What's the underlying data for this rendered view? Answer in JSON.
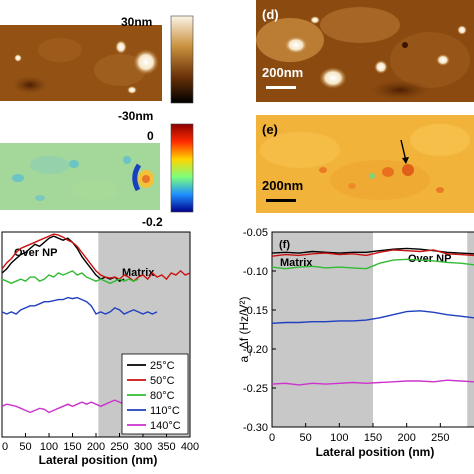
{
  "figure": {
    "panel_labels": {
      "d": "(d)",
      "e": "(e)",
      "f": "(f)"
    },
    "topo_colorbar": {
      "max": "30nm",
      "min": "-30nm"
    },
    "phase_colorbar": {
      "max": "0",
      "min": "-0.2"
    },
    "scale_bar": "200nm",
    "left_annotations": {
      "over_np": "Over NP",
      "matrix": "Matrix"
    },
    "right_annotations": {
      "matrix": "Matrix",
      "over_np": "Over NP"
    }
  },
  "chart_data": [
    {
      "type": "line",
      "id": "left-profile",
      "xlabel": "Lateral position (nm)",
      "ylabel": "",
      "xlim": [
        0,
        400
      ],
      "ylim": [
        0,
        1
      ],
      "xticks": [
        "0",
        "50",
        "100",
        "150",
        "200",
        "250",
        "300",
        "350",
        "400"
      ],
      "matrix_region": [
        205,
        400
      ],
      "series": [
        {
          "name": "25°C",
          "color": "#000000",
          "x": [
            0,
            10,
            20,
            30,
            40,
            50,
            60,
            70,
            80,
            90,
            100,
            110,
            120,
            130,
            140,
            150,
            160,
            170,
            180,
            190,
            200,
            210,
            220,
            230,
            240,
            250,
            260
          ],
          "y": [
            0.8,
            0.82,
            0.85,
            0.87,
            0.89,
            0.9,
            0.92,
            0.94,
            0.93,
            0.95,
            0.97,
            0.98,
            0.97,
            0.96,
            0.97,
            0.95,
            0.92,
            0.88,
            0.85,
            0.82,
            0.79,
            0.77,
            0.78,
            0.77,
            0.78,
            0.76,
            0.77
          ]
        },
        {
          "name": "50°C",
          "color": "#cc1111",
          "x": [
            0,
            10,
            20,
            30,
            40,
            50,
            60,
            70,
            80,
            90,
            100,
            110,
            120,
            130,
            140,
            150,
            160,
            170,
            180,
            190,
            200,
            210,
            220,
            230,
            240,
            250,
            260,
            270,
            280,
            290,
            300,
            310,
            320,
            330,
            340,
            350,
            360,
            370,
            380,
            390,
            400
          ],
          "y": [
            0.82,
            0.85,
            0.87,
            0.9,
            0.92,
            0.93,
            0.94,
            0.95,
            0.96,
            0.97,
            0.98,
            0.99,
            0.985,
            0.975,
            0.96,
            0.95,
            0.93,
            0.9,
            0.87,
            0.84,
            0.81,
            0.79,
            0.78,
            0.775,
            0.78,
            0.77,
            0.79,
            0.78,
            0.76,
            0.78,
            0.79,
            0.77,
            0.8,
            0.78,
            0.79,
            0.77,
            0.8,
            0.79,
            0.81,
            0.79,
            0.8
          ]
        },
        {
          "name": "80°C",
          "color": "#33bb33",
          "x": [
            0,
            10,
            20,
            30,
            40,
            50,
            60,
            70,
            80,
            90,
            100,
            110,
            120,
            130,
            140,
            150,
            160,
            170,
            180,
            190,
            200,
            210,
            220,
            230,
            240,
            250,
            260,
            270,
            280,
            290
          ],
          "y": [
            0.77,
            0.76,
            0.75,
            0.76,
            0.77,
            0.76,
            0.78,
            0.78,
            0.76,
            0.77,
            0.79,
            0.78,
            0.8,
            0.79,
            0.8,
            0.81,
            0.79,
            0.8,
            0.78,
            0.77,
            0.76,
            0.77,
            0.76,
            0.75,
            0.76,
            0.77,
            0.76,
            0.77,
            0.76,
            0.77
          ]
        },
        {
          "name": "110°C",
          "color": "#1f3fbf",
          "x": [
            0,
            10,
            20,
            30,
            40,
            50,
            60,
            70,
            80,
            90,
            100,
            110,
            120,
            130,
            140,
            150,
            160,
            170,
            180,
            190,
            200,
            210,
            220,
            230,
            240,
            250,
            260,
            270,
            280,
            290,
            300,
            310,
            320,
            330
          ],
          "y": [
            0.61,
            0.6,
            0.61,
            0.6,
            0.62,
            0.63,
            0.64,
            0.64,
            0.65,
            0.66,
            0.66,
            0.665,
            0.67,
            0.67,
            0.68,
            0.675,
            0.68,
            0.67,
            0.66,
            0.64,
            0.6,
            0.61,
            0.6,
            0.61,
            0.63,
            0.62,
            0.6,
            0.61,
            0.62,
            0.61,
            0.6,
            0.61,
            0.6,
            0.61
          ]
        },
        {
          "name": "140°C",
          "color": "#cc33cc",
          "x": [
            0,
            10,
            20,
            30,
            40,
            50,
            60,
            70,
            80,
            90,
            100,
            110,
            120,
            130,
            140,
            150,
            160,
            170,
            180,
            190,
            200,
            210,
            220,
            230,
            240,
            250,
            260,
            270,
            280,
            290
          ],
          "y": [
            0.15,
            0.16,
            0.155,
            0.15,
            0.14,
            0.13,
            0.12,
            0.13,
            0.14,
            0.135,
            0.12,
            0.13,
            0.14,
            0.15,
            0.16,
            0.15,
            0.16,
            0.17,
            0.16,
            0.17,
            0.16,
            0.15,
            0.16,
            0.17,
            0.18,
            0.17,
            0.16,
            0.17,
            0.18,
            0.19
          ]
        }
      ]
    },
    {
      "type": "line",
      "id": "right-profile",
      "xlabel": "Lateral position (nm)",
      "ylabel": "a_Δf (Hz/V²)",
      "xlim": [
        0,
        300
      ],
      "ylim": [
        -0.3,
        -0.05
      ],
      "xticks": [
        "0",
        "50",
        "100",
        "150",
        "200",
        "250"
      ],
      "yticks": [
        "-0.05",
        "-0.10",
        "-0.15",
        "-0.20",
        "-0.25",
        "-0.30"
      ],
      "matrix_region": [
        0,
        150
      ],
      "series": [
        {
          "name": "25°C",
          "color": "#000000",
          "x": [
            0,
            20,
            40,
            60,
            80,
            100,
            120,
            140,
            160,
            180,
            200,
            220,
            240,
            260,
            280,
            300
          ],
          "y": [
            -0.077,
            -0.076,
            -0.077,
            -0.075,
            -0.076,
            -0.077,
            -0.076,
            -0.076,
            -0.074,
            -0.072,
            -0.071,
            -0.072,
            -0.074,
            -0.076,
            -0.077,
            -0.078
          ]
        },
        {
          "name": "50°C",
          "color": "#cc1111",
          "x": [
            0,
            20,
            40,
            60,
            80,
            100,
            120,
            140,
            160,
            180,
            200,
            220,
            240,
            260,
            280,
            300
          ],
          "y": [
            -0.081,
            -0.079,
            -0.08,
            -0.078,
            -0.077,
            -0.079,
            -0.078,
            -0.08,
            -0.076,
            -0.073,
            -0.074,
            -0.075,
            -0.073,
            -0.078,
            -0.079,
            -0.08
          ]
        },
        {
          "name": "80°C",
          "color": "#33bb33",
          "x": [
            0,
            20,
            40,
            60,
            80,
            100,
            120,
            140,
            160,
            180,
            200,
            220,
            240,
            260,
            280,
            300
          ],
          "y": [
            -0.095,
            -0.097,
            -0.095,
            -0.094,
            -0.096,
            -0.095,
            -0.096,
            -0.097,
            -0.09,
            -0.086,
            -0.085,
            -0.086,
            -0.087,
            -0.089,
            -0.09,
            -0.092
          ]
        },
        {
          "name": "110°C",
          "color": "#1f3fbf",
          "x": [
            0,
            20,
            40,
            60,
            80,
            100,
            120,
            140,
            160,
            180,
            200,
            220,
            240,
            260,
            280,
            300
          ],
          "y": [
            -0.167,
            -0.166,
            -0.166,
            -0.165,
            -0.165,
            -0.164,
            -0.164,
            -0.163,
            -0.16,
            -0.156,
            -0.152,
            -0.151,
            -0.153,
            -0.156,
            -0.158,
            -0.16
          ]
        },
        {
          "name": "140°C",
          "color": "#cc33cc",
          "x": [
            0,
            20,
            40,
            60,
            80,
            100,
            120,
            140,
            160,
            180,
            200,
            220,
            240,
            260,
            280,
            300
          ],
          "y": [
            -0.245,
            -0.244,
            -0.246,
            -0.244,
            -0.245,
            -0.244,
            -0.243,
            -0.244,
            -0.243,
            -0.242,
            -0.241,
            -0.241,
            -0.242,
            -0.24,
            -0.241,
            -0.242
          ]
        }
      ]
    }
  ]
}
